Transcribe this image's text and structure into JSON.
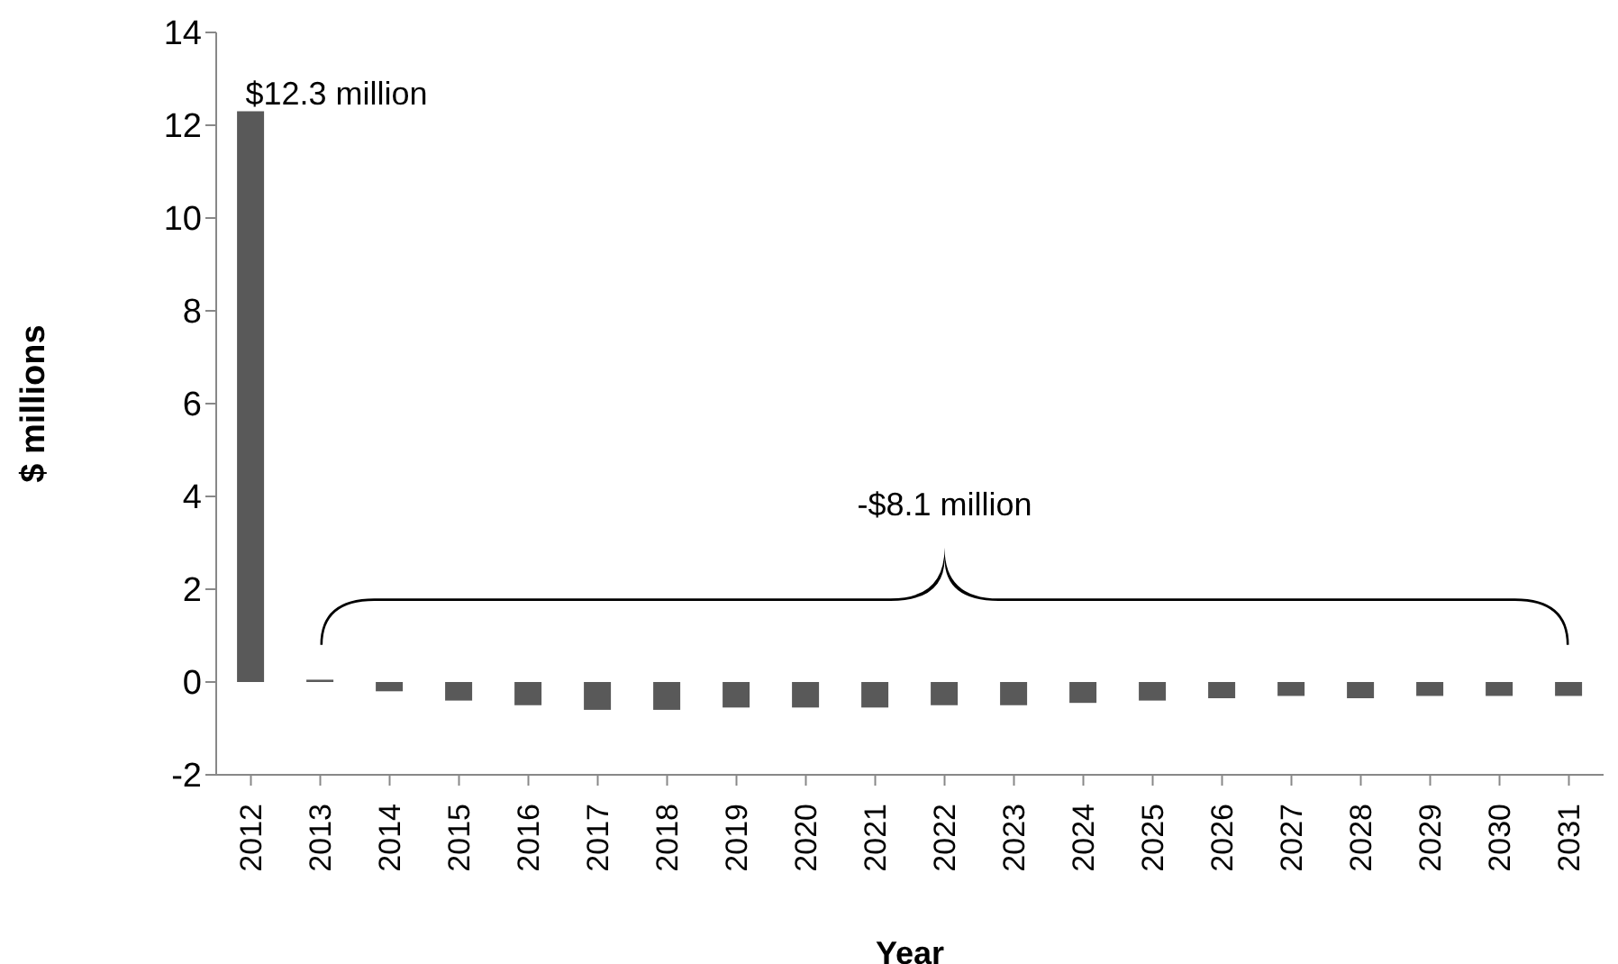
{
  "chart_data": {
    "type": "bar",
    "xlabel": "Year",
    "ylabel": "$ millions",
    "categories": [
      "2012",
      "2013",
      "2014",
      "2015",
      "2016",
      "2017",
      "2018",
      "2019",
      "2020",
      "2021",
      "2022",
      "2023",
      "2024",
      "2025",
      "2026",
      "2027",
      "2028",
      "2029",
      "2030",
      "2031"
    ],
    "values": [
      12.3,
      0.05,
      -0.2,
      -0.4,
      -0.5,
      -0.6,
      -0.6,
      -0.55,
      -0.55,
      -0.55,
      -0.5,
      -0.5,
      -0.45,
      -0.4,
      -0.35,
      -0.3,
      -0.35,
      -0.3,
      -0.3,
      -0.3
    ],
    "color": "#595959",
    "ylim": [
      -2,
      14
    ],
    "yticks": [
      -2,
      0,
      2,
      4,
      6,
      8,
      10,
      12,
      14
    ],
    "grid": false,
    "legend": false,
    "annotations": [
      {
        "text": "$12.3 million",
        "x": "2012",
        "y": 12.3
      },
      "-$8.1 million"
    ]
  }
}
